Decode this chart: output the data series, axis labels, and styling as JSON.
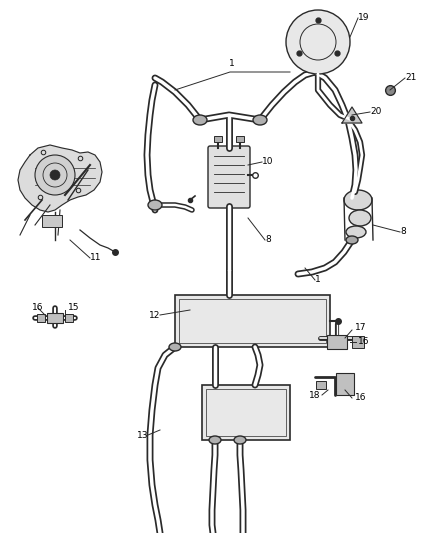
{
  "bg_color": "#ffffff",
  "line_color": "#2a2a2a",
  "label_color": "#000000",
  "lfs": 6.5,
  "fig_width": 4.38,
  "fig_height": 5.33,
  "dpi": 100
}
